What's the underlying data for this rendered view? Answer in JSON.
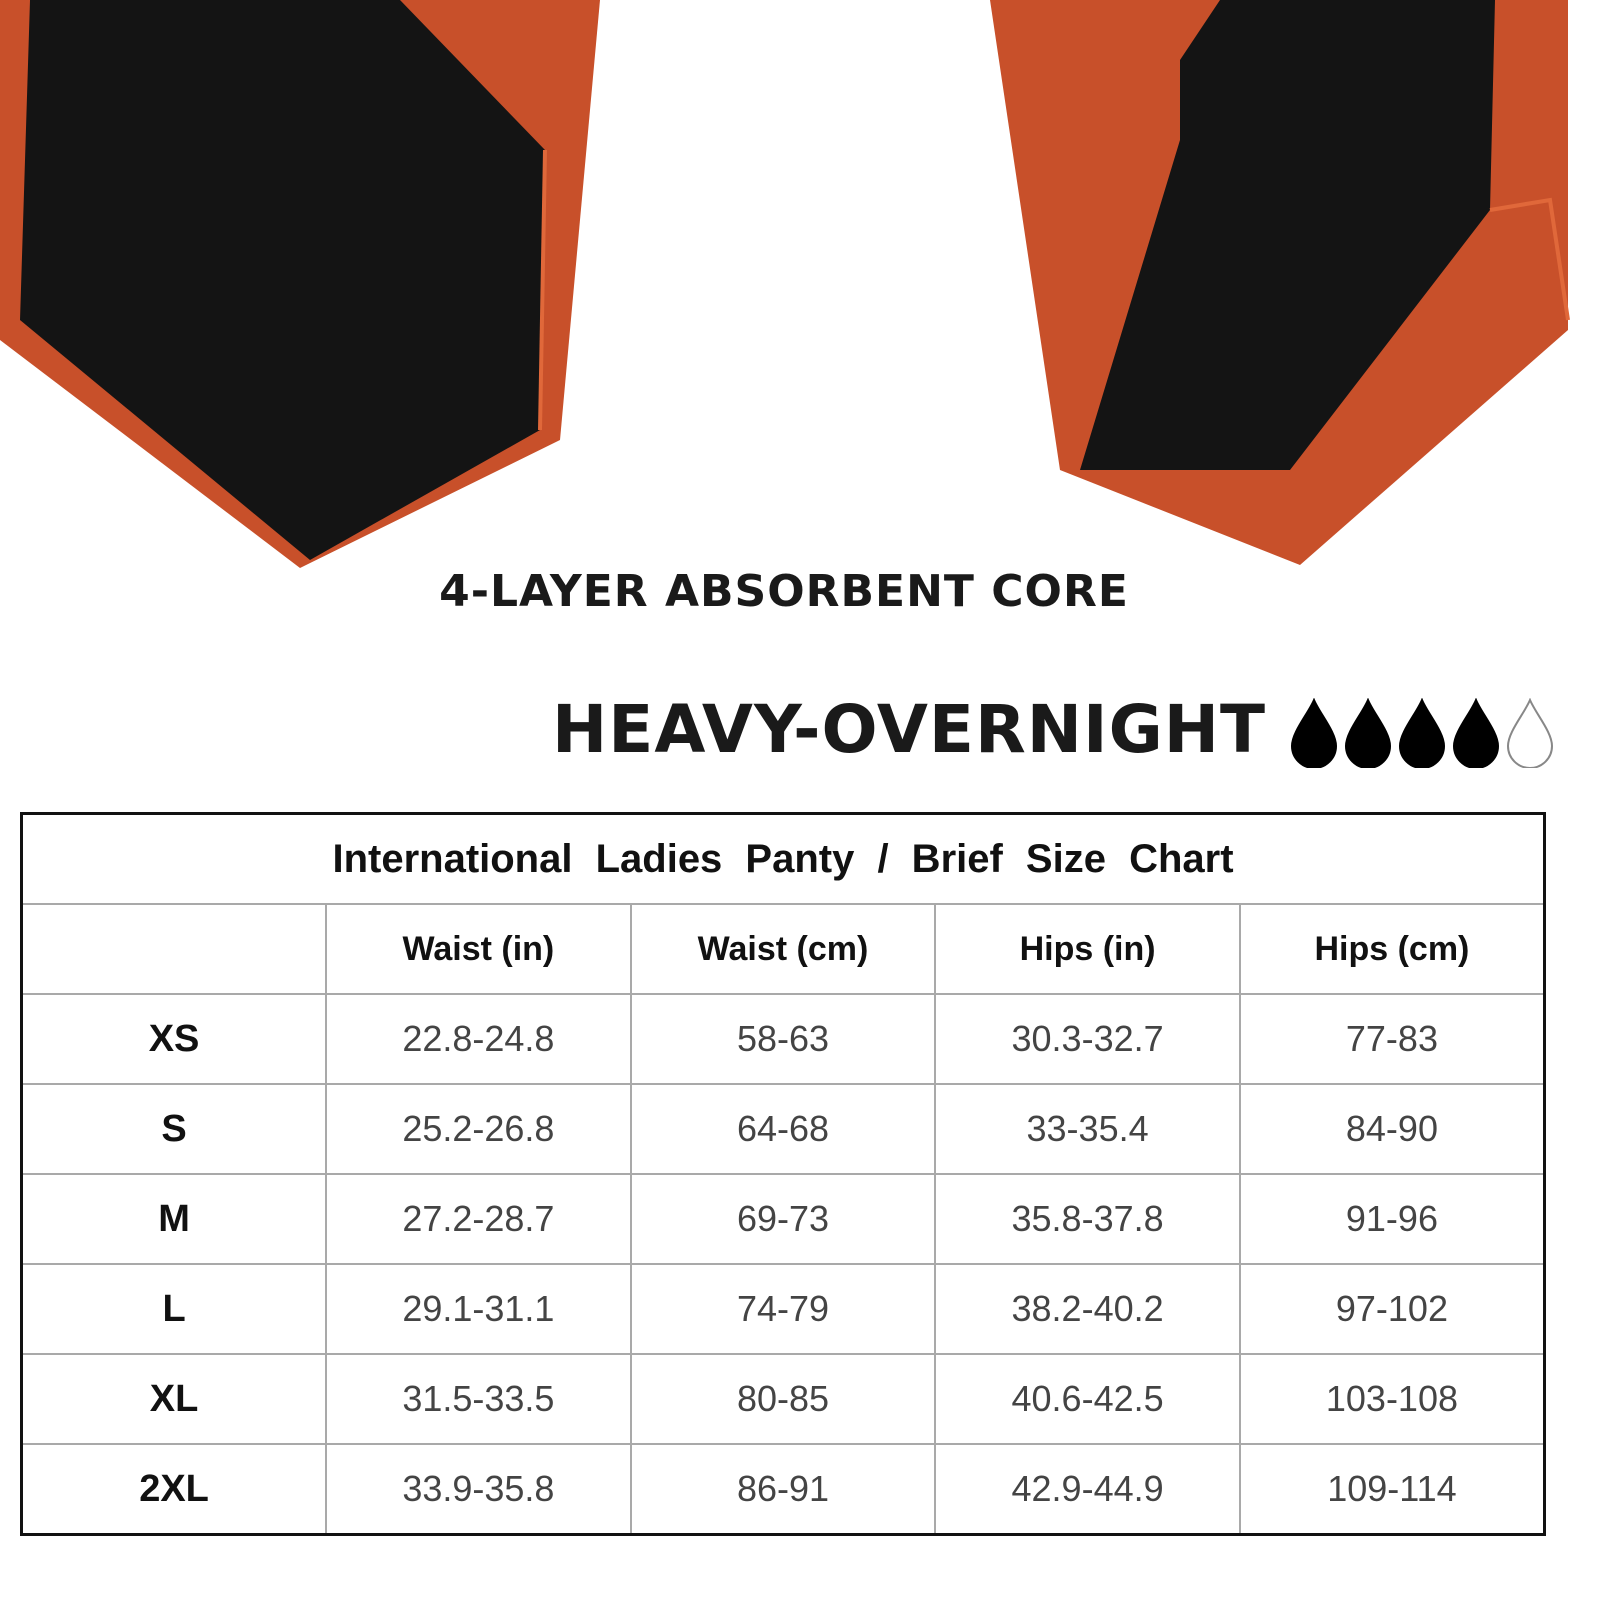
{
  "caption": "4-LAYER ABSORBENT CORE",
  "absorbency": {
    "label": "HEAVY-OVERNIGHT",
    "level": 4,
    "max": 5,
    "icon": "water-drop-icon"
  },
  "colors": {
    "fabric": "#c8502a",
    "gusset": "#141414"
  },
  "size_chart": {
    "title": "International  Ladies  Panty  /  Brief Size  Chart",
    "headers": [
      "",
      "Waist (in)",
      "Waist (cm)",
      "Hips (in)",
      "Hips (cm)"
    ],
    "rows": [
      [
        "XS",
        "22.8-24.8",
        "58-63",
        "30.3-32.7",
        "77-83"
      ],
      [
        "S",
        "25.2-26.8",
        "64-68",
        "33-35.4",
        "84-90"
      ],
      [
        "M",
        "27.2-28.7",
        "69-73",
        "35.8-37.8",
        "91-96"
      ],
      [
        "L",
        "29.1-31.1",
        "74-79",
        "38.2-40.2",
        "97-102"
      ],
      [
        "XL",
        "31.5-33.5",
        "80-85",
        "40.6-42.5",
        "103-108"
      ],
      [
        "2XL",
        "33.9-35.8",
        "86-91",
        "42.9-44.9",
        "109-114"
      ]
    ]
  }
}
